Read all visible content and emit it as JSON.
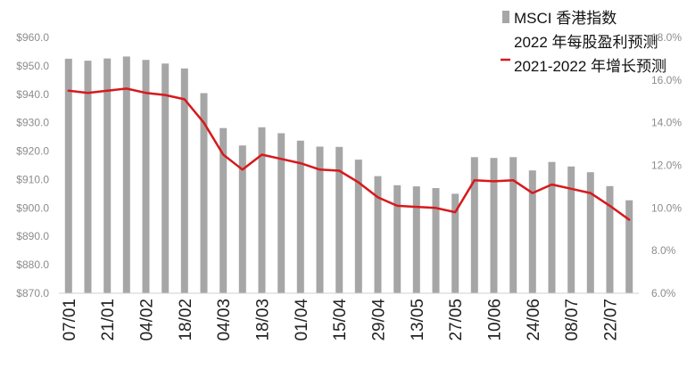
{
  "chart_data": {
    "type": "bar",
    "x": [
      "07/01",
      "14/01",
      "21/01",
      "28/01",
      "04/02",
      "11/02",
      "18/02",
      "25/02",
      "04/03",
      "11/03",
      "18/03",
      "25/03",
      "01/04",
      "08/04",
      "15/04",
      "22/04",
      "29/04",
      "06/05",
      "13/05",
      "20/05",
      "27/05",
      "03/06",
      "10/06",
      "17/06",
      "24/06",
      "01/07",
      "08/07",
      "15/07",
      "22/07",
      "29/07"
    ],
    "x_tick_labels": [
      "07/01",
      "21/01",
      "04/02",
      "18/02",
      "04/03",
      "18/03",
      "01/04",
      "15/04",
      "29/04",
      "13/05",
      "27/05",
      "10/06",
      "24/06",
      "08/07",
      "22/07"
    ],
    "series": [
      {
        "name": "MSCI 香港指数 2022 年每股盈利预测",
        "type": "bar",
        "axis": "left",
        "color": "#a6a6a6",
        "values": [
          952.5,
          951.8,
          952.6,
          953.3,
          952.1,
          950.8,
          949.1,
          940.4,
          928.1,
          922.0,
          928.4,
          926.3,
          923.7,
          921.6,
          921.5,
          917.0,
          911.2,
          908.0,
          907.6,
          907.0,
          905.0,
          917.9,
          917.6,
          917.9,
          913.2,
          916.2,
          914.6,
          912.6,
          907.7,
          902.7
        ]
      },
      {
        "name": "2021-2022 年增长预测",
        "type": "line",
        "axis": "right",
        "color": "#d7191c",
        "values": [
          15.5,
          15.4,
          15.5,
          15.6,
          15.4,
          15.3,
          15.1,
          14.0,
          12.5,
          11.8,
          12.5,
          12.3,
          12.1,
          11.8,
          11.75,
          11.2,
          10.5,
          10.1,
          10.05,
          10.0,
          9.8,
          11.3,
          11.25,
          11.3,
          10.7,
          11.1,
          10.9,
          10.7,
          10.1,
          9.45
        ]
      }
    ],
    "y_left": {
      "ylim": [
        870,
        960
      ],
      "ticks": [
        "$870.0",
        "$880.0",
        "$890.0",
        "$900.0",
        "$910.0",
        "$920.0",
        "$930.0",
        "$940.0",
        "$950.0",
        "$960.0"
      ]
    },
    "y_right": {
      "ylim": [
        6,
        18
      ],
      "ticks": [
        "6.0%",
        "8.0%",
        "10.0%",
        "12.0%",
        "14.0%",
        "16.0%",
        "18.0%"
      ]
    },
    "grid": false,
    "legend_position": "top-right",
    "legend": [
      {
        "lines": [
          "MSCI 香港指数",
          "2022 年每股盈利预测"
        ],
        "marker": "bar"
      },
      {
        "lines": [
          "2021-2022 年增长预测"
        ],
        "marker": "line"
      }
    ]
  }
}
